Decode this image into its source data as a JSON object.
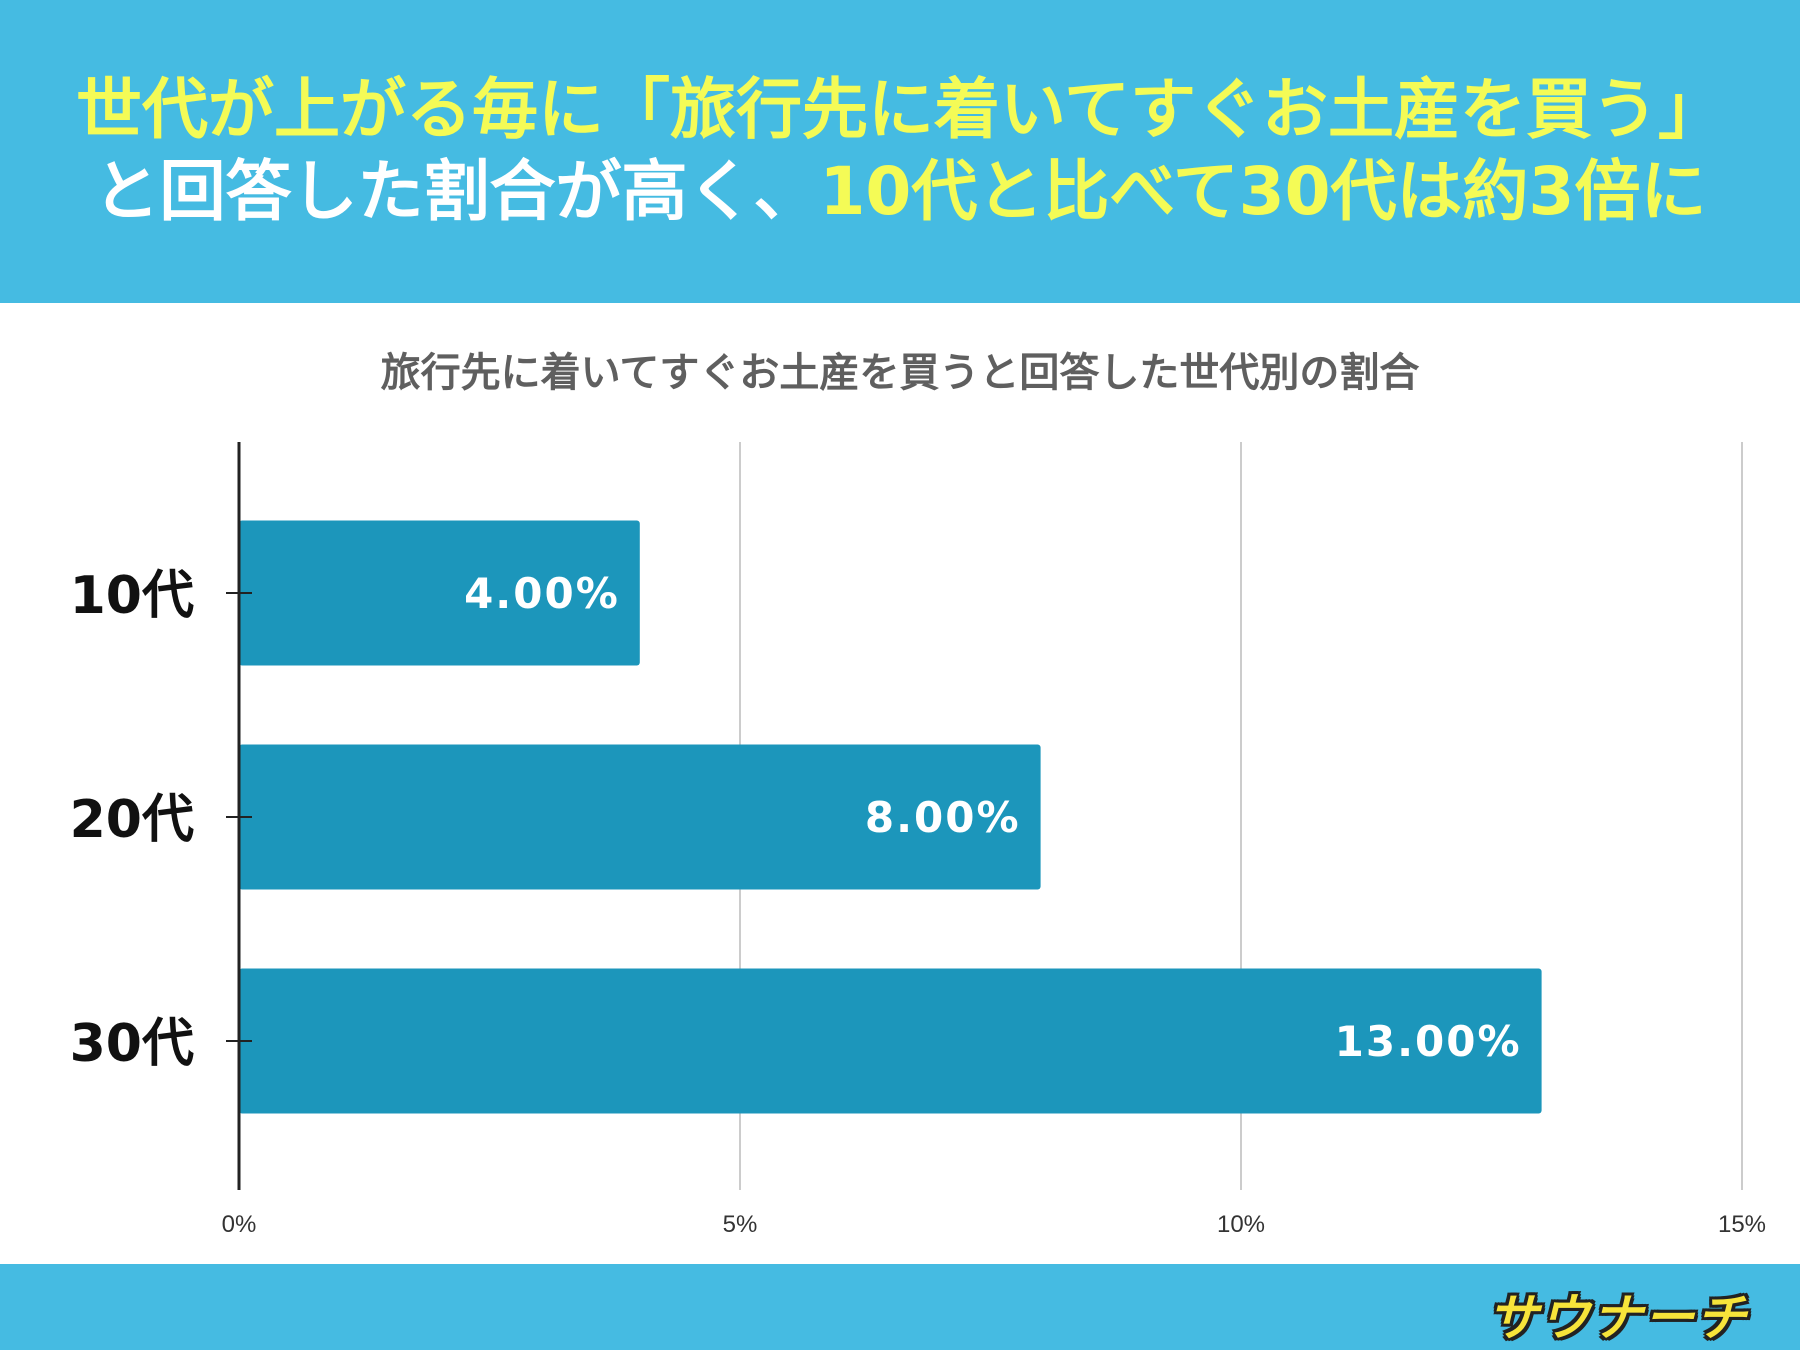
{
  "header": {
    "line1": "世代が上がる毎に「旅行先に着いてすぐお土産を買う」",
    "line2_a": "と回答した割合が高く、",
    "line2_b": "10代と比べて30代は約3倍に"
  },
  "footer": {
    "logo": "サウナーチ"
  },
  "colors": {
    "bar": "#1c96bb",
    "header_bg": "#45bbe2",
    "highlight": "#f4fb56"
  },
  "chart_data": {
    "type": "bar",
    "orientation": "horizontal",
    "title": "旅行先に着いてすぐお土産を買うと回答した世代別の割合",
    "categories": [
      "10代",
      "20代",
      "30代"
    ],
    "values": [
      4.0,
      8.0,
      13.0
    ],
    "data_labels": [
      "4.00%",
      "8.00%",
      "13.00%"
    ],
    "xlim": [
      0,
      15
    ],
    "x_ticks": [
      0,
      5,
      10,
      15
    ],
    "x_tick_labels": [
      "0%",
      "5%",
      "10%",
      "15%"
    ],
    "grid": true,
    "legend": "none"
  }
}
